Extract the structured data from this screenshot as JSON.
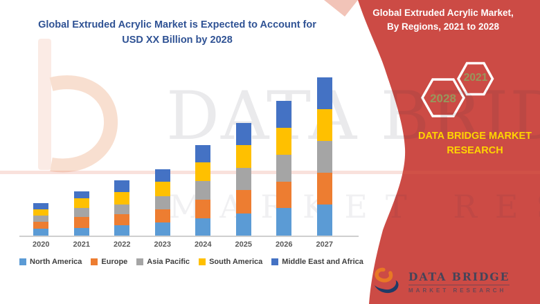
{
  "chart_title": {
    "line1": "Global Extruded Acrylic Market is Expected to Account for",
    "line2": "USD XX Billion by 2028",
    "color": "#2F5294"
  },
  "banner": {
    "title_line1": "Global Extruded Acrylic Market,",
    "title_line2": "By Regions, 2021 to 2028",
    "hexagons": [
      {
        "label": "2028"
      },
      {
        "label": "2021"
      }
    ],
    "brand_line1": "DATA BRIDGE MARKET",
    "brand_line2": "RESEARCH",
    "background_color": "#CC4B45",
    "accent_text_color": "#FFD500",
    "hexagon_year_color": "#97975C"
  },
  "chart_data": {
    "type": "bar",
    "stacked": true,
    "title": "Global Extruded Acrylic Market is Expected to Account for USD XX Billion by 2028",
    "xlabel": "",
    "ylabel": "",
    "grid": false,
    "legend_position": "bottom",
    "value_unit": "relative height units (y-axis values not shown; market sized as USD XX Billion)",
    "categories": [
      "2020",
      "2021",
      "2022",
      "2023",
      "2024",
      "2025",
      "2026",
      "2027"
    ],
    "series": [
      {
        "name": "North America",
        "color": "#5B9BD5",
        "values": [
          11,
          12,
          16,
          20,
          26,
          33,
          41,
          46
        ]
      },
      {
        "name": "Europe",
        "color": "#ED7D31",
        "values": [
          10,
          16,
          16,
          19,
          27,
          34,
          38,
          46
        ]
      },
      {
        "name": "Asia Pacific",
        "color": "#A5A5A5",
        "values": [
          9,
          13,
          14,
          19,
          27,
          32,
          39,
          46
        ]
      },
      {
        "name": "South America",
        "color": "#FFC000",
        "values": [
          9,
          14,
          18,
          21,
          27,
          33,
          39,
          46
        ]
      },
      {
        "name": "Middle East and Africa",
        "color": "#4472C4",
        "values": [
          9,
          10,
          17,
          18,
          25,
          32,
          39,
          46
        ]
      }
    ],
    "totals_by_year": [
      48,
      65,
      81,
      97,
      132,
      164,
      196,
      230
    ]
  },
  "watermark": {
    "line1": "DATA BRIDGE",
    "line2": "MARKET RESEARCH"
  },
  "footer_logo": {
    "line1": "DATA BRIDGE",
    "line2": "MARKET RESEARCH"
  }
}
